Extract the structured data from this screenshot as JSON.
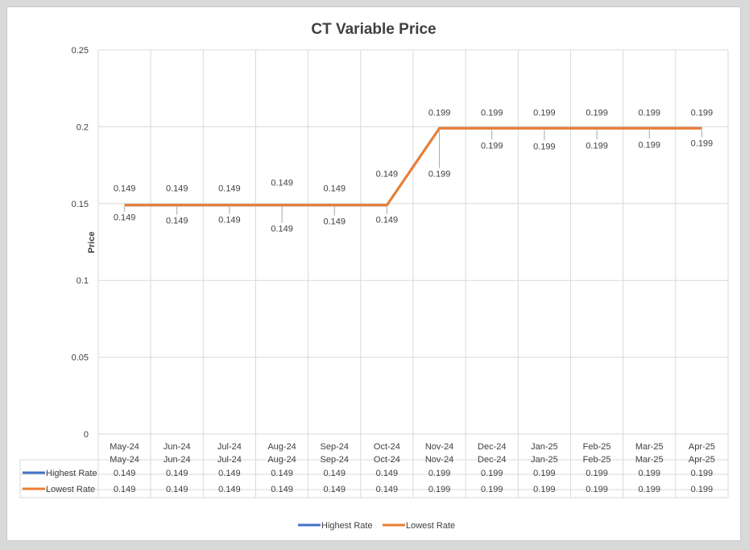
{
  "chart_data": {
    "type": "line",
    "title": "CT Variable Price",
    "xlabel": "",
    "ylabel": "Price",
    "ylim": [
      0,
      0.25
    ],
    "yticks": [
      "0",
      "0.05",
      "0.1",
      "0.15",
      "0.2",
      "0.25"
    ],
    "categories": [
      "May-24",
      "Jun-24",
      "Jul-24",
      "Aug-24",
      "Sep-24",
      "Oct-24",
      "Nov-24",
      "Dec-24",
      "Jan-25",
      "Feb-25",
      "Mar-25",
      "Apr-25"
    ],
    "grid": true,
    "legend_position": "bottom",
    "data_table": true,
    "series": [
      {
        "name": "Highest Rate",
        "color": "#4472c4",
        "values": [
          0.149,
          0.149,
          0.149,
          0.149,
          0.149,
          0.149,
          0.199,
          0.199,
          0.199,
          0.199,
          0.199,
          0.199
        ],
        "labels": [
          "0.149",
          "0.149",
          "0.149",
          "0.149",
          "0.149",
          "0.149",
          "0.199",
          "0.199",
          "0.199",
          "0.199",
          "0.199",
          "0.199"
        ]
      },
      {
        "name": "Lowest Rate",
        "color": "#ed7d31",
        "values": [
          0.149,
          0.149,
          0.149,
          0.149,
          0.149,
          0.149,
          0.199,
          0.199,
          0.199,
          0.199,
          0.199,
          0.199
        ],
        "labels": [
          "0.149",
          "0.149",
          "0.149",
          "0.149",
          "0.149",
          "0.149",
          "0.199",
          "0.199",
          "0.199",
          "0.199",
          "0.199",
          "0.199"
        ]
      }
    ]
  }
}
